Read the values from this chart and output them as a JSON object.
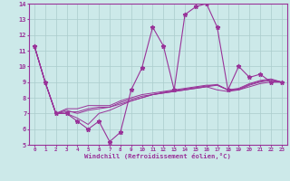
{
  "xlabel": "Windchill (Refroidissement éolien,°C)",
  "xlim": [
    -0.5,
    23.5
  ],
  "ylim": [
    5,
    14
  ],
  "yticks": [
    5,
    6,
    7,
    8,
    9,
    10,
    11,
    12,
    13,
    14
  ],
  "xticks": [
    0,
    1,
    2,
    3,
    4,
    5,
    6,
    7,
    8,
    9,
    10,
    11,
    12,
    13,
    14,
    15,
    16,
    17,
    18,
    19,
    20,
    21,
    22,
    23
  ],
  "bg_color": "#cce9e9",
  "line_color": "#993399",
  "grid_color": "#aacccc",
  "lines": [
    [
      11.3,
      9.0,
      7.0,
      7.0,
      6.5,
      6.0,
      6.5,
      5.2,
      5.8,
      8.5,
      9.9,
      12.5,
      11.3,
      8.5,
      13.3,
      13.8,
      14.0,
      12.5,
      8.5,
      10.0,
      9.3,
      9.5,
      9.0,
      9.0
    ],
    [
      11.3,
      9.0,
      7.0,
      7.0,
      6.7,
      6.3,
      7.0,
      7.2,
      7.5,
      7.8,
      8.0,
      8.2,
      8.3,
      8.4,
      8.5,
      8.6,
      8.7,
      8.5,
      8.4,
      8.5,
      8.7,
      8.9,
      9.0,
      9.0
    ],
    [
      11.3,
      9.0,
      7.0,
      7.3,
      7.3,
      7.5,
      7.5,
      7.5,
      7.8,
      8.0,
      8.2,
      8.3,
      8.4,
      8.5,
      8.6,
      8.7,
      8.8,
      8.8,
      8.5,
      8.5,
      8.8,
      9.0,
      9.1,
      9.0
    ],
    [
      11.3,
      9.0,
      7.0,
      7.2,
      7.0,
      7.2,
      7.3,
      7.4,
      7.6,
      7.8,
      8.0,
      8.2,
      8.3,
      8.4,
      8.5,
      8.6,
      8.7,
      8.8,
      8.5,
      8.6,
      8.9,
      9.1,
      9.2,
      9.0
    ],
    [
      11.3,
      9.0,
      7.0,
      7.1,
      7.1,
      7.3,
      7.4,
      7.4,
      7.7,
      7.9,
      8.1,
      8.2,
      8.35,
      8.45,
      8.55,
      8.65,
      8.75,
      8.85,
      8.5,
      8.55,
      8.85,
      9.05,
      9.15,
      9.0
    ]
  ]
}
